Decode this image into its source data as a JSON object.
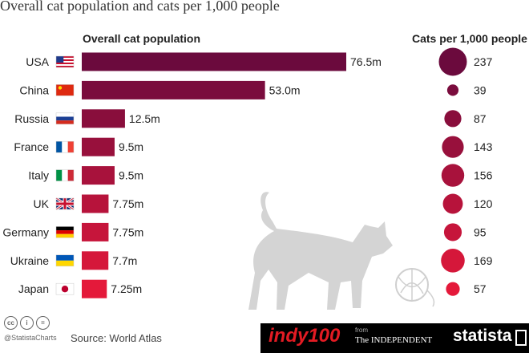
{
  "title": "Overall cat population and cats per 1,000 people",
  "column_headers": {
    "population": "Overall cat population",
    "per_1000": "Cats per 1,000 people"
  },
  "footer": {
    "cc_icons": [
      "cc",
      "i",
      "="
    ],
    "handle": "@StatistaCharts",
    "source": "Source: World Atlas",
    "indy_logo": "indy100",
    "from_label": "from",
    "independent_logo": "The INDEPENDENT",
    "statista_logo": "statista"
  },
  "colors": {
    "bar_start": "#6b0a3d",
    "bar_end": "#e4193a",
    "cat_silhouette": "#d4d4d4"
  },
  "chart_data": {
    "type": "bar",
    "orientation": "horizontal",
    "categories": [
      "USA",
      "China",
      "Russia",
      "France",
      "Italy",
      "UK",
      "Germany",
      "Ukraine",
      "Japan"
    ],
    "flags": [
      "usa",
      "china",
      "russia",
      "france",
      "italy",
      "uk",
      "germany",
      "ukraine",
      "japan"
    ],
    "series": [
      {
        "name": "Overall cat population",
        "values": [
          76.5,
          53.0,
          12.5,
          9.5,
          9.5,
          7.75,
          7.75,
          7.7,
          7.25
        ],
        "labels": [
          "76.5m",
          "53.0m",
          "12.5m",
          "9.5m",
          "9.5m",
          "7.75m",
          "7.75m",
          "7.7m",
          "7.25m"
        ],
        "unit": "millions"
      },
      {
        "name": "Cats per 1,000 people",
        "values": [
          237,
          39,
          87,
          143,
          156,
          120,
          95,
          169,
          57
        ],
        "labels": [
          "237",
          "39",
          "87",
          "143",
          "156",
          "120",
          "95",
          "169",
          "57"
        ],
        "encoding": "bubble"
      }
    ]
  }
}
